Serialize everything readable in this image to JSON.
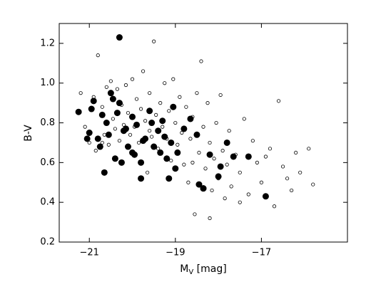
{
  "chart_data": {
    "type": "scatter",
    "x_label": {
      "main": "M",
      "sub": "V",
      "rest": " [mag]"
    },
    "y_label": "B-V",
    "xlim": [
      -21.7,
      -15.0
    ],
    "ylim": [
      0.2,
      1.3
    ],
    "xticks": [
      {
        "value": -21,
        "label": "−21"
      },
      {
        "value": -19,
        "label": "−19"
      },
      {
        "value": -17,
        "label": "−17"
      }
    ],
    "yticks": [
      0.2,
      0.4,
      0.6,
      0.8,
      {
        "value": 1,
        "label": "1.0"
      },
      1.2
    ],
    "series": [
      {
        "marker": "open",
        "color": "#000000",
        "x": [
          -21.2,
          -21.1,
          -21.0,
          -20.9,
          -20.85,
          -20.8,
          -20.7,
          -20.65,
          -20.6,
          -20.55,
          -20.5,
          -20.45,
          -20.4,
          -20.35,
          -20.3,
          -20.25,
          -20.2,
          -20.15,
          -20.1,
          -20.05,
          -20.0,
          -19.95,
          -19.9,
          -19.85,
          -19.8,
          -19.75,
          -19.7,
          -19.65,
          -19.6,
          -19.55,
          -19.5,
          -19.45,
          -19.4,
          -19.35,
          -19.3,
          -19.25,
          -19.2,
          -19.15,
          -19.1,
          -19.05,
          -19.0,
          -18.95,
          -18.9,
          -18.85,
          -18.8,
          -18.75,
          -18.7,
          -18.65,
          -18.6,
          -18.55,
          -18.5,
          -18.45,
          -18.4,
          -18.35,
          -18.3,
          -18.25,
          -18.2,
          -18.15,
          -18.1,
          -18.05,
          -18.0,
          -17.95,
          -17.9,
          -17.85,
          -17.8,
          -17.75,
          -17.7,
          -17.6,
          -17.5,
          -17.4,
          -17.3,
          -17.2,
          -17.1,
          -17.0,
          -16.9,
          -16.8,
          -16.7,
          -16.6,
          -16.5,
          -16.4,
          -16.3,
          -16.2,
          -16.1,
          -15.8,
          -15.9,
          -20.7,
          -19.6,
          -18.6,
          -18.2,
          -17.5
        ],
        "values": [
          0.95,
          0.78,
          0.7,
          0.93,
          0.66,
          1.14,
          0.88,
          0.74,
          0.98,
          0.69,
          1.01,
          0.82,
          0.77,
          0.97,
          0.71,
          0.89,
          0.79,
          0.99,
          0.85,
          0.74,
          1.02,
          0.78,
          0.92,
          0.7,
          0.87,
          1.06,
          0.81,
          0.55,
          0.95,
          0.73,
          1.21,
          0.84,
          0.67,
          0.9,
          0.78,
          1.0,
          0.72,
          0.86,
          0.61,
          1.02,
          0.8,
          0.69,
          0.93,
          0.75,
          0.59,
          0.88,
          0.5,
          0.72,
          0.83,
          0.34,
          0.95,
          0.65,
          1.11,
          0.78,
          0.57,
          0.9,
          0.7,
          0.46,
          0.62,
          0.8,
          0.52,
          0.94,
          0.66,
          0.42,
          0.59,
          0.76,
          0.48,
          0.64,
          0.55,
          0.82,
          0.44,
          0.71,
          0.6,
          0.5,
          0.63,
          0.67,
          0.38,
          0.91,
          0.58,
          0.52,
          0.46,
          0.65,
          0.55,
          0.49,
          0.67,
          0.7,
          0.76,
          0.6,
          0.32,
          0.4
        ]
      },
      {
        "marker": "filled",
        "color": "#000000",
        "x": [
          -20.3,
          -21.25,
          -20.65,
          -16.9,
          -18.35,
          -18.45,
          -18.0,
          -17.95,
          -17.65,
          -17.3,
          -17.8,
          -18.5,
          -18.8,
          -18.65,
          -19.05,
          -18.95,
          -18.2,
          -18.35,
          -19.0,
          -19.15,
          -19.8,
          -20.0,
          -21.0,
          -20.9,
          -20.8,
          -20.7,
          -20.6,
          -20.5,
          -20.4,
          -20.3,
          -20.2,
          -20.1,
          -20.0,
          -19.9,
          -19.8,
          -19.7,
          -19.6,
          -19.5,
          -19.4,
          -19.3,
          -19.2,
          -19.1,
          -20.95,
          -20.75,
          -20.55,
          -20.35,
          -20.15,
          -19.95,
          -19.75,
          -19.55,
          -19.35,
          -19.25,
          -20.45,
          -20.25,
          -21.05
        ],
        "values": [
          1.23,
          0.855,
          0.55,
          0.43,
          0.47,
          0.49,
          0.53,
          0.58,
          0.63,
          0.63,
          0.7,
          0.74,
          0.77,
          0.82,
          0.88,
          0.65,
          0.64,
          0.47,
          0.57,
          0.52,
          0.52,
          0.65,
          0.75,
          0.91,
          0.72,
          0.84,
          0.8,
          0.95,
          0.62,
          0.9,
          0.76,
          0.68,
          0.83,
          0.79,
          0.6,
          0.72,
          0.86,
          0.68,
          0.76,
          0.81,
          0.62,
          0.7,
          0.87,
          0.68,
          0.74,
          0.85,
          0.77,
          0.64,
          0.71,
          0.8,
          0.65,
          0.73,
          0.92,
          0.6,
          0.72
        ]
      }
    ]
  }
}
